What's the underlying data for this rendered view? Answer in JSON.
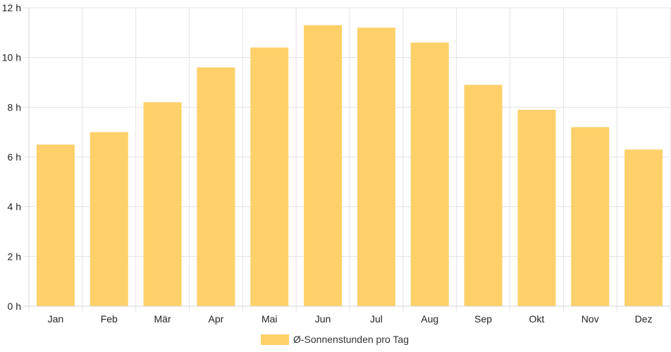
{
  "chart_data": {
    "type": "bar",
    "categories": [
      "Jan",
      "Feb",
      "Mär",
      "Apr",
      "Mai",
      "Jun",
      "Jul",
      "Aug",
      "Sep",
      "Okt",
      "Nov",
      "Dez"
    ],
    "series": [
      {
        "name": "Ø-Sonnenstunden pro Tag",
        "values": [
          6.5,
          7.0,
          8.2,
          9.6,
          10.4,
          11.3,
          11.2,
          10.6,
          8.9,
          7.9,
          7.2,
          6.3
        ]
      }
    ],
    "yticks": [
      "0 h",
      "2 h",
      "4 h",
      "6 h",
      "8 h",
      "10 h",
      "12 h"
    ],
    "ylim": [
      0,
      12
    ],
    "grid": true,
    "legend_position": "bottom",
    "colors": {
      "bar": "#fdd069",
      "grid": "#e3e3e3"
    }
  }
}
